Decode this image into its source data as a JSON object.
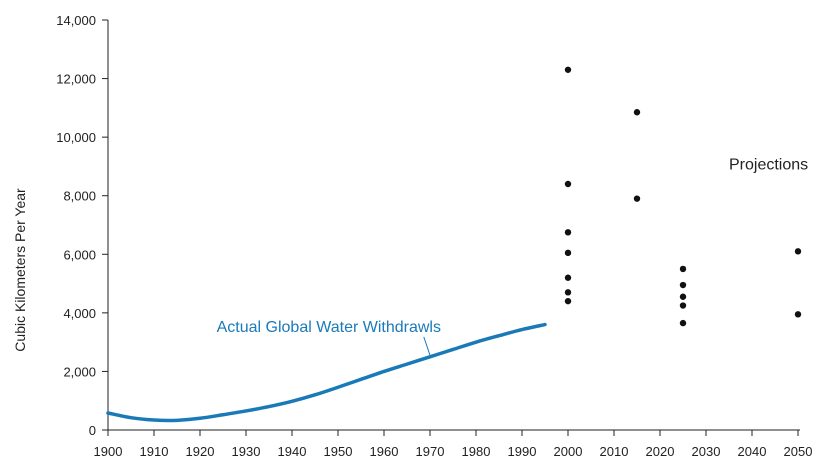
{
  "chart_data": {
    "type": "scatter",
    "ylabel": "Cubic Kilometers Per Year",
    "xlabel": "",
    "xlim": [
      1900,
      2050
    ],
    "ylim": [
      0,
      14000
    ],
    "x_ticks": [
      "1900",
      "1910",
      "1920",
      "1930",
      "1940",
      "1950",
      "1960",
      "1970",
      "1980",
      "1990",
      "2000",
      "2010",
      "2020",
      "2030",
      "2040",
      "2050"
    ],
    "y_ticks": [
      "0",
      "2,000",
      "4,000",
      "6,000",
      "8,000",
      "10,000",
      "12,000",
      "14,000"
    ],
    "grid": false,
    "colors": {
      "actual_line": "#1a7ab8",
      "points": "#111111",
      "axis": "#222222"
    },
    "series": [
      {
        "name": "Actual Global Water Withdrawls",
        "kind": "line",
        "x": [
          1900,
          1905,
          1910,
          1915,
          1920,
          1925,
          1930,
          1935,
          1940,
          1945,
          1950,
          1955,
          1960,
          1965,
          1970,
          1975,
          1980,
          1985,
          1990,
          1995
        ],
        "y": [
          580,
          420,
          340,
          330,
          400,
          520,
          650,
          800,
          980,
          1200,
          1460,
          1730,
          2000,
          2250,
          2500,
          2750,
          3000,
          3220,
          3430,
          3600
        ]
      },
      {
        "name": "Projections",
        "kind": "scatter",
        "x": [
          2000,
          2000,
          2000,
          2000,
          2000,
          2000,
          2000,
          2015,
          2015,
          2025,
          2025,
          2025,
          2025,
          2025,
          2050,
          2050
        ],
        "y": [
          12300,
          8400,
          6750,
          6050,
          5200,
          4700,
          4400,
          10850,
          7900,
          5500,
          4950,
          4550,
          4250,
          3650,
          6100,
          3950
        ]
      }
    ],
    "annotations": [
      {
        "text": "Actual Global Water Withdrawls",
        "x": 1948,
        "y": 3350,
        "target_x": 1970,
        "target_y": 2550
      },
      {
        "text": "Projections",
        "x": 2035,
        "y": 8900
      }
    ]
  }
}
